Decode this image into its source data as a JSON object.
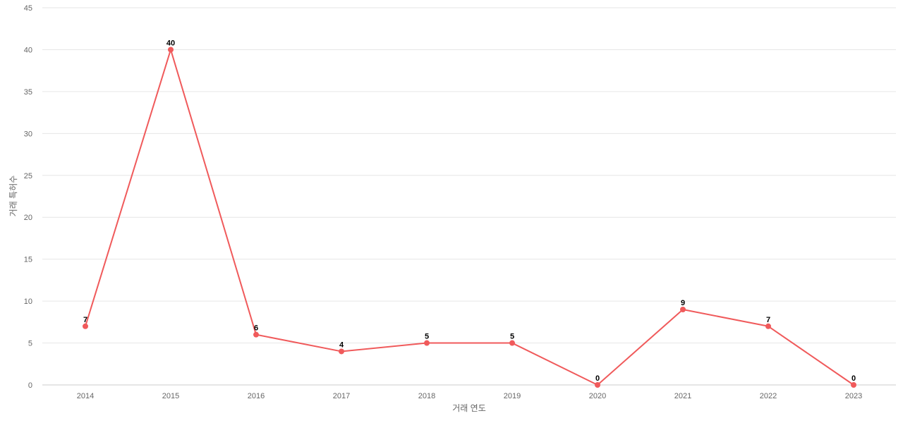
{
  "chart_data": {
    "type": "line",
    "title": "",
    "xlabel": "거래 연도",
    "ylabel": "거래 특허수",
    "categories": [
      "2014",
      "2015",
      "2016",
      "2017",
      "2018",
      "2019",
      "2020",
      "2021",
      "2022",
      "2023"
    ],
    "series": [
      {
        "values": [
          7,
          40,
          6,
          4,
          5,
          5,
          0,
          9,
          7,
          0
        ],
        "color": "#f05a5b"
      }
    ],
    "ylim": [
      0,
      45
    ],
    "yticks": [
      0,
      5,
      10,
      15,
      20,
      25,
      30,
      35,
      40,
      45
    ],
    "grid": true,
    "data_labels": true,
    "legend": "none"
  }
}
